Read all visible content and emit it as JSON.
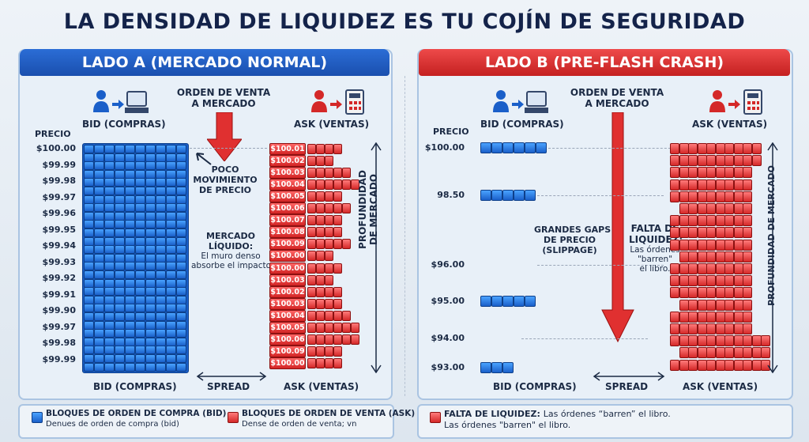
{
  "title": "LA DENSIDAD DE LIQUIDEZ ES TU COJÍN DE SEGURIDAD",
  "colors": {
    "blue": "#1a5fc9",
    "red": "#d42828",
    "title": "#14234a"
  },
  "icons": [
    "trader-icon",
    "arrow-right-icon",
    "computer-terminal-icon",
    "calculator-icon",
    "arrow-down-icon",
    "double-arrow-icon"
  ],
  "side_a": {
    "banner": "LADO A (MERCADO NORMAL)",
    "bid_label": "BID (COMPRAS)",
    "ask_label": "ASK (VENTAS)",
    "order_label_1": "ORDEN DE VENTA",
    "order_label_2": "A MERCADO",
    "price_header": "PRECIO",
    "bid_prices": [
      "$100.00",
      "$99.99",
      "$99.98",
      "$99.97",
      "$99.96",
      "$99.95",
      "$99.94",
      "$99.93",
      "$99.92",
      "$99.91",
      "$99.90",
      "$99.97",
      "$99.98",
      "$99.99"
    ],
    "ask_prices": [
      "$100.01",
      "$100.02",
      "$100.03",
      "$100.04",
      "$100.05",
      "$100.06",
      "$100.07",
      "$100.08",
      "$100.09",
      "$100.00",
      "$100.00",
      "$100.03",
      "$100.02",
      "$100.03",
      "$100.04",
      "$100.05",
      "$100.06",
      "$100.09",
      "$100.00"
    ],
    "note_1": "POCO",
    "note_2": "MOVIMIENTO",
    "note_3": "DE PRECIO",
    "liquid_1": "MERCADO",
    "liquid_2": "LÍQUIDO:",
    "liquid_3": "El muro denso",
    "liquid_4": "absorbe el impacto",
    "depth_1": "PROFUNDIDAD",
    "depth_2": "DE MERCADO",
    "bottom_bid": "BID (COMPRAS)",
    "spread": "SPREAD",
    "bottom_ask": "ASK (VENTAS)"
  },
  "side_b": {
    "banner": "LADO B (PRE-FLASH CRASH)",
    "bid_label": "BID (COMPRAS)",
    "ask_label": "ASK (VENTAS)",
    "order_label_1": "ORDEN DE VENTA",
    "order_label_2": "A MERCADO",
    "price_header": "PRECIO",
    "prices": [
      "$100.00",
      "98.50",
      "$96.00",
      "$95.00",
      "$94.00",
      "$93.00"
    ],
    "gaps_1": "GRANDES GAPS",
    "gaps_2": "DE PRECIO",
    "gaps_3": "(SLIPPAGE)",
    "lack_1": "FALTA DE",
    "lack_2": "LIQUIDEZ:",
    "lack_3": "Las órdenes",
    "lack_4": "\"barren\"",
    "lack_5": "el libro.",
    "depth": "PROFUNDIDAD DE MERCADO",
    "bottom_bid": "BID (COMPRAS)",
    "spread": "SPREAD",
    "bottom_ask": "ASK (VENTAS)"
  },
  "legend": {
    "bid_title": "BLOQUES DE ORDEN DE COMPRA (BID)",
    "bid_desc": "Denues de orden de compra (bid)",
    "ask_title": "BLOQUES DE ORDEN DE VENTA (ASK)",
    "ask_desc": "Dense de orden de venta; vn",
    "lack_title": "FALTA DE LIQUIDEZ:",
    "lack_text": "Las órdenes “barren” el libro.",
    "lack_text_2": "Las órdenes \"barren\" el libro."
  }
}
